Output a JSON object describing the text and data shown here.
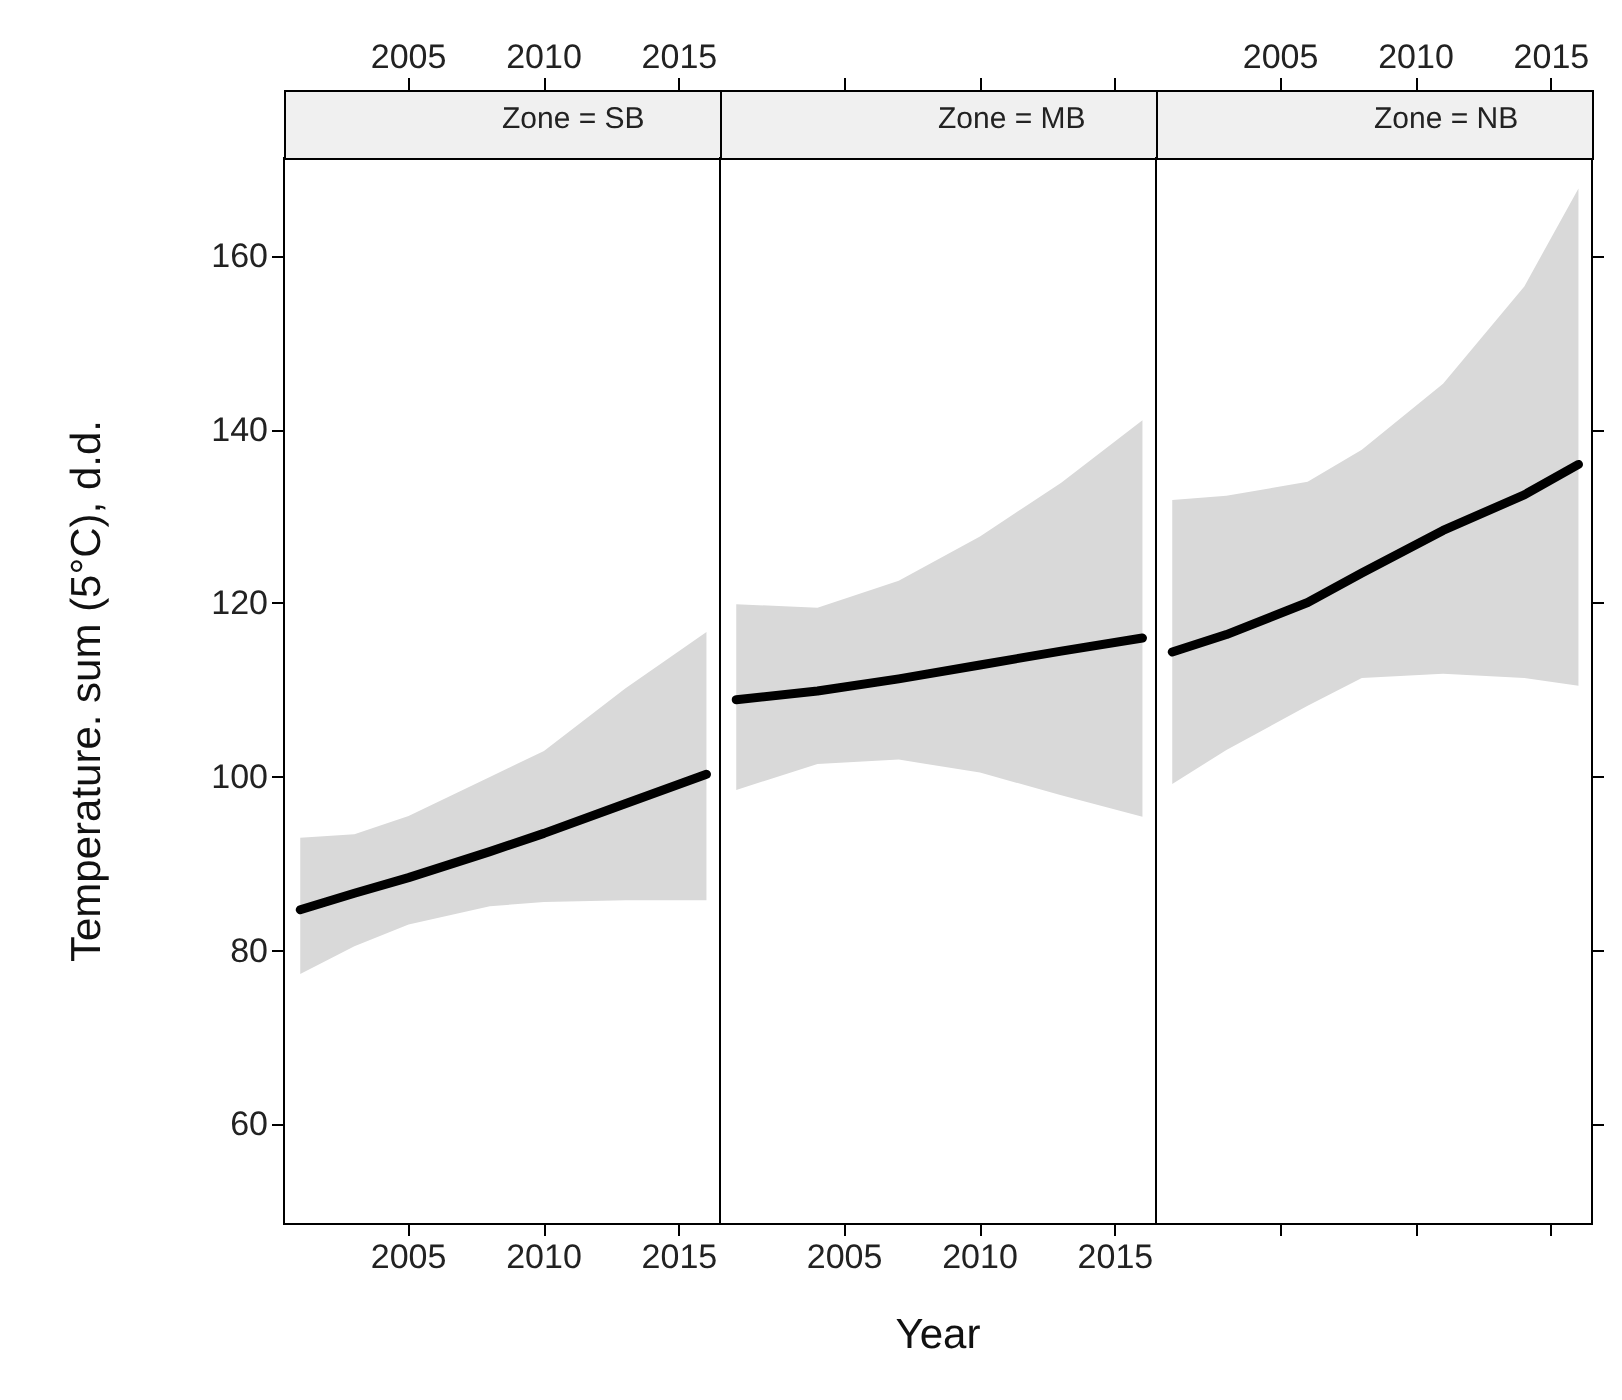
{
  "chart_data": [
    {
      "type": "line",
      "title": "Zone = SB",
      "ylabel": "Temperature. sum (5°C), d.d.",
      "xlim": [
        2000.4,
        2016.5
      ],
      "xticks": [
        2005,
        2010,
        2015
      ],
      "x2lim": [
        2000.4,
        2016.5
      ],
      "x2ticks": [
        2005,
        2010,
        2015
      ],
      "ylim": [
        48.5,
        171.3
      ],
      "yticks": [
        60,
        80,
        100,
        120,
        140,
        160
      ],
      "marker": "none",
      "line_style": "solid",
      "series": [
        {
          "color": "#000000",
          "x": [
            2001,
            2003,
            2005,
            2008,
            2010,
            2013,
            2016
          ],
          "values": [
            84.7,
            86.6,
            88.4,
            91.4,
            93.5,
            96.9,
            100.3
          ],
          "upper": [
            93.0,
            93.4,
            95.5,
            100,
            103,
            110.2,
            116.7
          ],
          "lower": [
            77.3,
            80.5,
            83,
            85.1,
            85.6,
            85.8,
            85.8
          ]
        }
      ]
    },
    {
      "type": "line",
      "title": "Zone = MB",
      "xlabel": "Year",
      "xlim": [
        2000.4,
        2016.5
      ],
      "xticks": [
        2005,
        2010,
        2015
      ],
      "ylim": [
        48.5,
        171.3
      ],
      "tick_labels": "x",
      "marker": "none",
      "line_style": "solid",
      "series": [
        {
          "color": "#000000",
          "x": [
            2001,
            2004,
            2007,
            2010,
            2013,
            2016
          ],
          "values": [
            108.9,
            109.9,
            111.3,
            112.9,
            114.5,
            116
          ],
          "upper": [
            119.9,
            119.5,
            122.6,
            127.7,
            133.9,
            141.1
          ],
          "lower": [
            98.5,
            101.5,
            102,
            100.5,
            97.9,
            95.4
          ]
        }
      ]
    },
    {
      "type": "line",
      "title": "Zone = NB",
      "xlim": [
        2000.4,
        2016.5
      ],
      "x2lim": [
        2000.4,
        2016.5
      ],
      "x2ticks": [
        2005,
        2010,
        2015
      ],
      "ylim": [
        48.5,
        171.3
      ],
      "yticks": [
        60,
        80,
        100,
        120,
        140,
        160
      ],
      "tick_labels": "x",
      "marker": "none",
      "line_style": "solid",
      "series": [
        {
          "color": "#000000",
          "x": [
            2001,
            2003,
            2006,
            2008,
            2011,
            2014,
            2016
          ],
          "values": [
            114.4,
            116.4,
            120.1,
            123.5,
            128.4,
            132.5,
            136
          ],
          "upper": [
            131.9,
            132.4,
            134,
            137.7,
            145.3,
            156.5,
            167.8
          ],
          "lower": [
            99.2,
            103.1,
            108.2,
            111.4,
            111.9,
            111.4,
            110.5
          ]
        }
      ]
    }
  ]
}
